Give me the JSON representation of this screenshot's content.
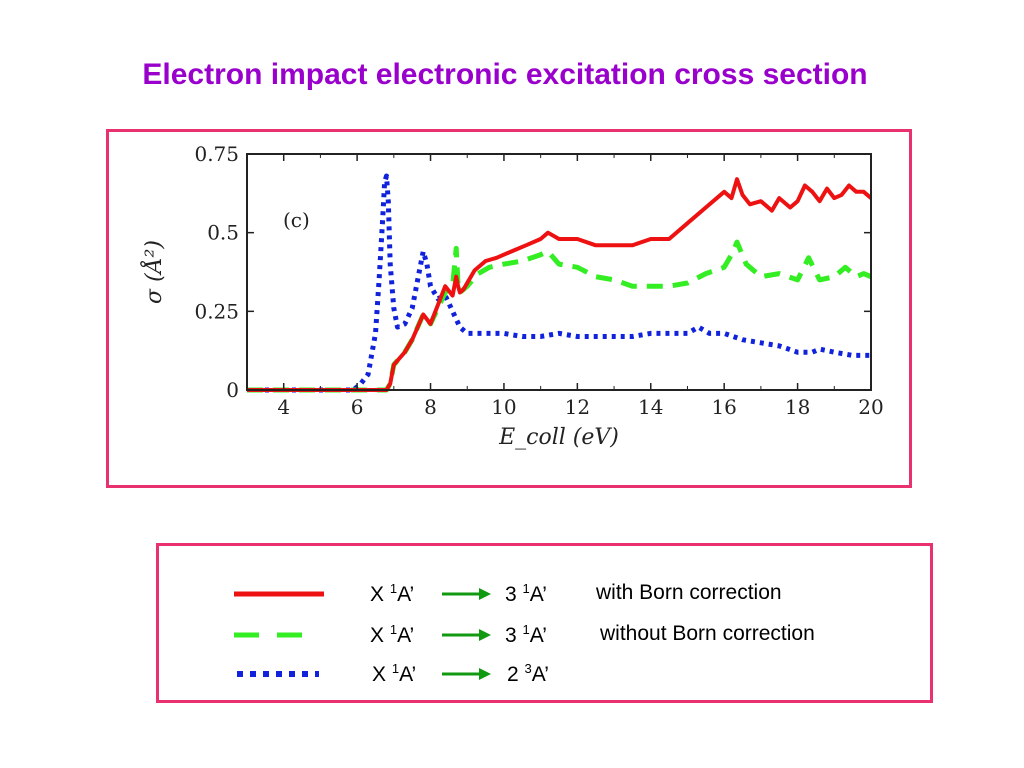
{
  "title": "Electron impact electronic excitation cross section",
  "chart_data": {
    "type": "line",
    "panel_label": "(c)",
    "xlabel": "E_coll (eV)",
    "ylabel": "σ (Å²)",
    "xlim": [
      3,
      20
    ],
    "ylim": [
      0,
      0.75
    ],
    "xticks": [
      "4",
      "6",
      "8",
      "10",
      "12",
      "14",
      "16",
      "18",
      "20"
    ],
    "xtick_values": [
      4,
      6,
      8,
      10,
      12,
      14,
      16,
      18,
      20
    ],
    "yticks": [
      "0",
      "0.25",
      "0.5",
      "0.75"
    ],
    "ytick_values": [
      0,
      0.25,
      0.5,
      0.75
    ],
    "grid": false,
    "series": [
      {
        "style": "solid",
        "color": "#ee1111",
        "x": [
          3,
          6.8,
          6.9,
          7.0,
          7.3,
          7.5,
          7.8,
          8.0,
          8.2,
          8.4,
          8.6,
          8.7,
          8.75,
          8.8,
          8.9,
          9.0,
          9.2,
          9.5,
          9.8,
          10.2,
          10.6,
          11.0,
          11.2,
          11.5,
          12.0,
          12.5,
          13.0,
          13.5,
          14.0,
          14.5,
          15.0,
          15.5,
          16.0,
          16.2,
          16.35,
          16.5,
          16.7,
          17.0,
          17.3,
          17.5,
          17.8,
          18.0,
          18.2,
          18.4,
          18.6,
          18.8,
          19.0,
          19.2,
          19.4,
          19.6,
          19.8,
          20
        ],
        "y": [
          0,
          0,
          0.02,
          0.08,
          0.12,
          0.16,
          0.24,
          0.21,
          0.27,
          0.33,
          0.3,
          0.36,
          0.33,
          0.31,
          0.32,
          0.34,
          0.38,
          0.41,
          0.42,
          0.44,
          0.46,
          0.48,
          0.5,
          0.48,
          0.48,
          0.46,
          0.46,
          0.46,
          0.48,
          0.48,
          0.53,
          0.58,
          0.63,
          0.61,
          0.67,
          0.62,
          0.59,
          0.6,
          0.57,
          0.61,
          0.58,
          0.6,
          0.65,
          0.63,
          0.6,
          0.64,
          0.61,
          0.62,
          0.65,
          0.63,
          0.63,
          0.61
        ]
      },
      {
        "style": "dashed",
        "color": "#33ee22",
        "x": [
          3,
          6.8,
          6.9,
          7.0,
          7.3,
          7.5,
          7.8,
          8.0,
          8.2,
          8.4,
          8.6,
          8.7,
          8.75,
          8.8,
          8.9,
          9.0,
          9.3,
          9.6,
          10.0,
          10.5,
          11.0,
          11.2,
          11.5,
          12.0,
          12.5,
          13.0,
          13.5,
          14.0,
          14.5,
          15.0,
          15.5,
          16.0,
          16.2,
          16.35,
          16.6,
          17.0,
          17.5,
          18.0,
          18.3,
          18.6,
          19.0,
          19.3,
          19.6,
          19.8,
          20
        ],
        "y": [
          0,
          0,
          0.02,
          0.08,
          0.12,
          0.16,
          0.24,
          0.21,
          0.26,
          0.31,
          0.33,
          0.45,
          0.33,
          0.31,
          0.32,
          0.33,
          0.37,
          0.39,
          0.4,
          0.41,
          0.43,
          0.44,
          0.4,
          0.39,
          0.36,
          0.35,
          0.33,
          0.33,
          0.33,
          0.34,
          0.37,
          0.39,
          0.43,
          0.47,
          0.4,
          0.36,
          0.37,
          0.35,
          0.42,
          0.35,
          0.36,
          0.39,
          0.36,
          0.37,
          0.36
        ]
      },
      {
        "style": "dotted",
        "color": "#1122dd",
        "x": [
          3,
          5.9,
          6.1,
          6.3,
          6.5,
          6.6,
          6.7,
          6.75,
          6.8,
          6.85,
          6.9,
          7.0,
          7.1,
          7.3,
          7.5,
          7.7,
          7.8,
          7.9,
          8.0,
          8.2,
          8.4,
          8.6,
          8.8,
          9.0,
          9.3,
          9.6,
          10.0,
          10.5,
          11.0,
          11.5,
          12.0,
          12.5,
          13.0,
          13.5,
          14.0,
          14.5,
          15.0,
          15.3,
          15.6,
          16.0,
          16.5,
          17.0,
          17.5,
          18.0,
          18.4,
          18.6,
          19.0,
          19.5,
          20
        ],
        "y": [
          0,
          0,
          0.02,
          0.05,
          0.18,
          0.35,
          0.55,
          0.66,
          0.68,
          0.6,
          0.4,
          0.26,
          0.2,
          0.21,
          0.26,
          0.38,
          0.44,
          0.4,
          0.33,
          0.29,
          0.3,
          0.25,
          0.2,
          0.18,
          0.18,
          0.18,
          0.18,
          0.17,
          0.17,
          0.18,
          0.17,
          0.17,
          0.17,
          0.17,
          0.18,
          0.18,
          0.18,
          0.2,
          0.18,
          0.18,
          0.16,
          0.15,
          0.14,
          0.12,
          0.12,
          0.13,
          0.12,
          0.11,
          0.11
        ]
      }
    ]
  },
  "legend": {
    "rows": [
      {
        "from_term": "X ",
        "from_sup": "1",
        "from_sym": "A’",
        "to_term": "3 ",
        "to_sup": "1",
        "to_sym": "A’",
        "note": "with Born correction"
      },
      {
        "from_term": "X ",
        "from_sup": "1",
        "from_sym": "A’",
        "to_term": "3 ",
        "to_sup": "1",
        "to_sym": "A’",
        "note": "without Born correction"
      },
      {
        "from_term": "X ",
        "from_sup": "1",
        "from_sym": "A’",
        "to_term": "2 ",
        "to_sup": "3",
        "to_sym": "A’",
        "note": ""
      }
    ]
  },
  "colors": {
    "title": "#9900cc",
    "frame": "#e8316e",
    "arrow": "#119911"
  }
}
